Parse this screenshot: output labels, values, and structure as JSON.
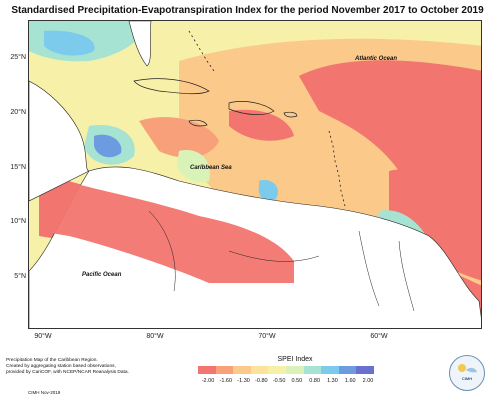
{
  "title": "Standardised Precipitation-Evapotranspiration Index for the period November 2017 to October 2019",
  "map": {
    "region": "Caribbean",
    "lat_labels": [
      "25°N",
      "20°N",
      "15°N",
      "10°N",
      "5°N"
    ],
    "lon_labels": [
      "90°W",
      "80°W",
      "70°W",
      "60°W"
    ],
    "ocean_labels": [
      "Atlantic Ocean",
      "Caribbean Sea",
      "Pacific Ocean"
    ]
  },
  "legend": {
    "title": "SPEI Index",
    "ticks": [
      "-2.00",
      "-1.60",
      "-1.30",
      "-0.80",
      "-0.50",
      "0.50",
      "0.80",
      "1.30",
      "1.60",
      "2.00"
    ],
    "colors": [
      "#f2756f",
      "#f7a07a",
      "#fbc98a",
      "#fbe49a",
      "#f7f0a8",
      "#d9f2b8",
      "#a6e3d3",
      "#7dcbec",
      "#6d9be0",
      "#6b6fcf"
    ]
  },
  "caption": {
    "line1": "Precipitation Map of the Caribbean Region.",
    "line2": "Created by aggregating station based observations,",
    "line3": "provided by CariCOF, with NCEP/NCAR Reanalysis Data.",
    "credit": "CIMH Nov-2019"
  },
  "logo": {
    "text": "CIMH"
  }
}
